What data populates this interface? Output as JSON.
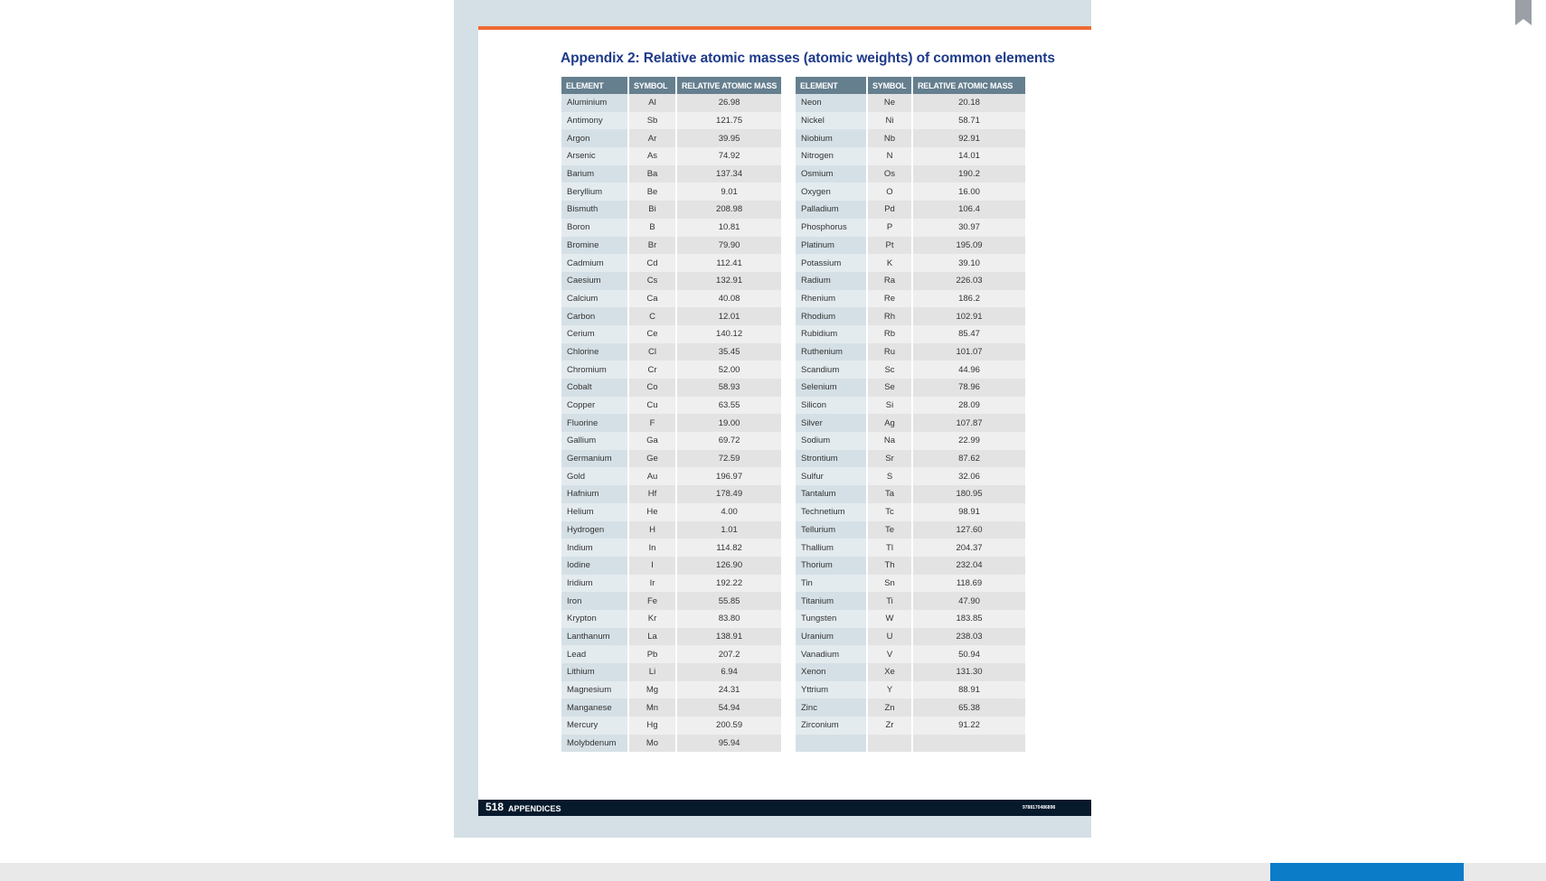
{
  "document": {
    "title": "Appendix 2: Relative atomic masses (atomic weights) of common elements",
    "headers": {
      "element": "ELEMENT",
      "symbol": "SYMBOL",
      "mass": "RELATIVE ATOMIC MASS"
    },
    "left_rows": [
      [
        "Aluminium",
        "Al",
        "26.98"
      ],
      [
        "Antimony",
        "Sb",
        "121.75"
      ],
      [
        "Argon",
        "Ar",
        "39.95"
      ],
      [
        "Arsenic",
        "As",
        "74.92"
      ],
      [
        "Barium",
        "Ba",
        "137.34"
      ],
      [
        "Beryllium",
        "Be",
        "9.01"
      ],
      [
        "Bismuth",
        "Bi",
        "208.98"
      ],
      [
        "Boron",
        "B",
        "10.81"
      ],
      [
        "Bromine",
        "Br",
        "79.90"
      ],
      [
        "Cadmium",
        "Cd",
        "112.41"
      ],
      [
        "Caesium",
        "Cs",
        "132.91"
      ],
      [
        "Calcium",
        "Ca",
        "40.08"
      ],
      [
        "Carbon",
        "C",
        "12.01"
      ],
      [
        "Cerium",
        "Ce",
        "140.12"
      ],
      [
        "Chlorine",
        "Cl",
        "35.45"
      ],
      [
        "Chromium",
        "Cr",
        "52.00"
      ],
      [
        "Cobalt",
        "Co",
        "58.93"
      ],
      [
        "Copper",
        "Cu",
        "63.55"
      ],
      [
        "Fluorine",
        "F",
        "19.00"
      ],
      [
        "Gallium",
        "Ga",
        "69.72"
      ],
      [
        "Germanium",
        "Ge",
        "72.59"
      ],
      [
        "Gold",
        "Au",
        "196.97"
      ],
      [
        "Hafnium",
        "Hf",
        "178.49"
      ],
      [
        "Helium",
        "He",
        "4.00"
      ],
      [
        "Hydrogen",
        "H",
        "1.01"
      ],
      [
        "Indium",
        "In",
        "114.82"
      ],
      [
        "Iodine",
        "I",
        "126.90"
      ],
      [
        "Iridium",
        "Ir",
        "192.22"
      ],
      [
        "Iron",
        "Fe",
        "55.85"
      ],
      [
        "Krypton",
        "Kr",
        "83.80"
      ],
      [
        "Lanthanum",
        "La",
        "138.91"
      ],
      [
        "Lead",
        "Pb",
        "207.2"
      ],
      [
        "Lithium",
        "Li",
        "6.94"
      ],
      [
        "Magnesium",
        "Mg",
        "24.31"
      ],
      [
        "Manganese",
        "Mn",
        "54.94"
      ],
      [
        "Mercury",
        "Hg",
        "200.59"
      ],
      [
        "Molybdenum",
        "Mo",
        "95.94"
      ]
    ],
    "right_rows": [
      [
        "Neon",
        "Ne",
        "20.18"
      ],
      [
        "Nickel",
        "Ni",
        "58.71"
      ],
      [
        "Niobium",
        "Nb",
        "92.91"
      ],
      [
        "Nitrogen",
        "N",
        "14.01"
      ],
      [
        "Osmium",
        "Os",
        "190.2"
      ],
      [
        "Oxygen",
        "O",
        "16.00"
      ],
      [
        "Palladium",
        "Pd",
        "106.4"
      ],
      [
        "Phosphorus",
        "P",
        "30.97"
      ],
      [
        "Platinum",
        "Pt",
        "195.09"
      ],
      [
        "Potassium",
        "K",
        "39.10"
      ],
      [
        "Radium",
        "Ra",
        "226.03"
      ],
      [
        "Rhenium",
        "Re",
        "186.2"
      ],
      [
        "Rhodium",
        "Rh",
        "102.91"
      ],
      [
        "Rubidium",
        "Rb",
        "85.47"
      ],
      [
        "Ruthenium",
        "Ru",
        "101.07"
      ],
      [
        "Scandium",
        "Sc",
        "44.96"
      ],
      [
        "Selenium",
        "Se",
        "78.96"
      ],
      [
        "Silicon",
        "Si",
        "28.09"
      ],
      [
        "Silver",
        "Ag",
        "107.87"
      ],
      [
        "Sodium",
        "Na",
        "22.99"
      ],
      [
        "Strontium",
        "Sr",
        "87.62"
      ],
      [
        "Sulfur",
        "S",
        "32.06"
      ],
      [
        "Tantalum",
        "Ta",
        "180.95"
      ],
      [
        "Technetium",
        "Tc",
        "98.91"
      ],
      [
        "Tellurium",
        "Te",
        "127.60"
      ],
      [
        "Thallium",
        "Tl",
        "204.37"
      ],
      [
        "Thorium",
        "Th",
        "232.04"
      ],
      [
        "Tin",
        "Sn",
        "118.69"
      ],
      [
        "Titanium",
        "Ti",
        "47.90"
      ],
      [
        "Tungsten",
        "W",
        "183.85"
      ],
      [
        "Uranium",
        "U",
        "238.03"
      ],
      [
        "Vanadium",
        "V",
        "50.94"
      ],
      [
        "Xenon",
        "Xe",
        "131.30"
      ],
      [
        "Yttrium",
        "Y",
        "88.91"
      ],
      [
        "Zinc",
        "Zn",
        "65.38"
      ],
      [
        "Zirconium",
        "Zr",
        "91.22"
      ],
      [
        "",
        "",
        ""
      ]
    ],
    "footer": {
      "page_number": "518",
      "section": "APPENDICES",
      "isbn": "9788170486898"
    }
  },
  "viewer": {
    "bookmark_icon": "bookmark-icon",
    "accent_color": "#0a7cc8"
  },
  "colors": {
    "title": "#1e3a8a",
    "header_fill": "#657f8f",
    "rule": "#ef6a33",
    "footer_fill": "#071a2c"
  }
}
